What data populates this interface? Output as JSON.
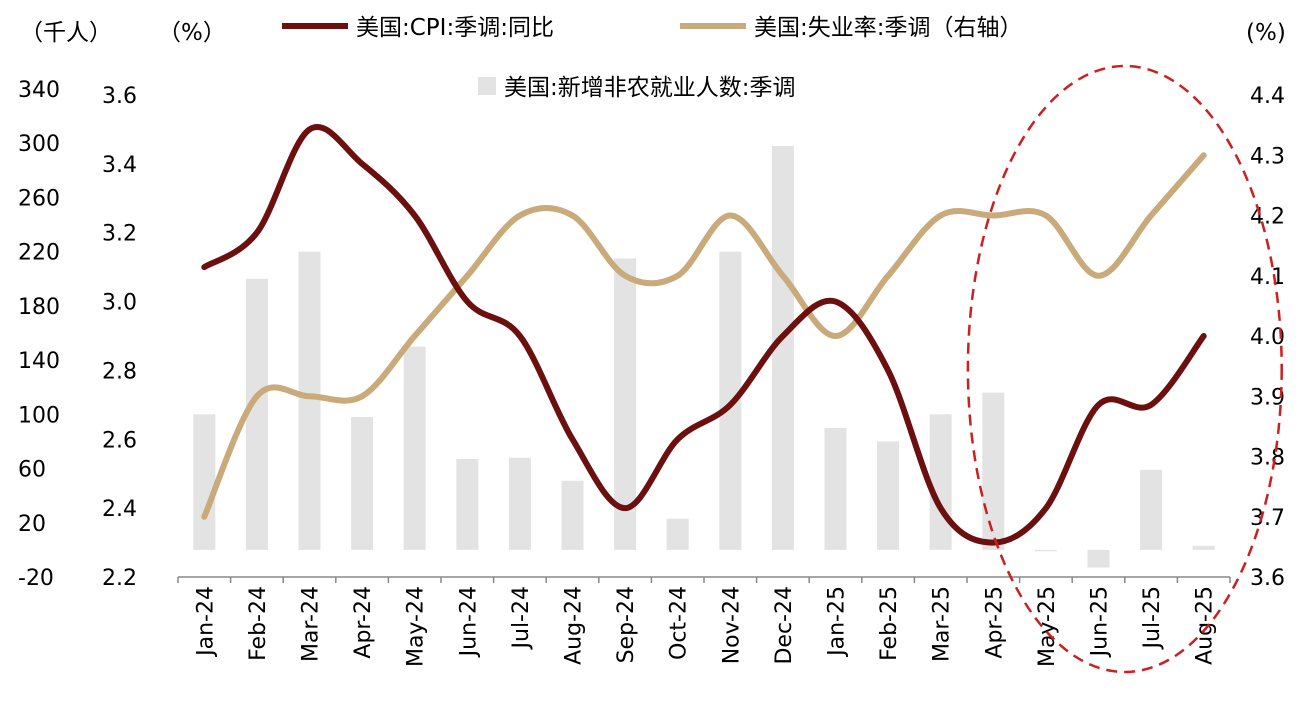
{
  "chart_data": {
    "type": "bar+line",
    "units": {
      "left_bar_axis": "（千人）",
      "left_line_axis": "（%）",
      "right_axis": "(%)"
    },
    "categories": [
      "Jan-24",
      "Feb-24",
      "Mar-24",
      "Apr-24",
      "May-24",
      "Jun-24",
      "Jul-24",
      "Aug-24",
      "Sep-24",
      "Oct-24",
      "Nov-24",
      "Dec-24",
      "Jan-25",
      "Feb-25",
      "Mar-25",
      "Apr-25",
      "May-25",
      "Jun-25",
      "Jul-25",
      "Aug-25"
    ],
    "axes": {
      "bar_left": {
        "min": -20,
        "max": 340,
        "ticks": [
          "340",
          "300",
          "260",
          "220",
          "180",
          "140",
          "100",
          "60",
          "20",
          "-20"
        ]
      },
      "cpi_left": {
        "min": 2.2,
        "max": 3.6,
        "ticks": [
          "3.6",
          "3.4",
          "3.2",
          "3.0",
          "2.8",
          "2.6",
          "2.4",
          "2.2"
        ]
      },
      "unemp_right": {
        "min": 3.6,
        "max": 4.4,
        "ticks": [
          "4.4",
          "4.3",
          "4.2",
          "4.1",
          "4.0",
          "3.9",
          "3.8",
          "3.7",
          "3.6"
        ]
      }
    },
    "series": [
      {
        "name": "美国:CPI:季调:同比",
        "kind": "line",
        "axis": "cpi_left",
        "color": "#6b0f0f",
        "values": [
          3.1,
          3.2,
          3.5,
          3.4,
          3.25,
          3.0,
          2.9,
          2.6,
          2.4,
          2.6,
          2.7,
          2.9,
          3.0,
          2.8,
          2.4,
          2.3,
          2.4,
          2.7,
          2.7,
          2.9
        ]
      },
      {
        "name": "美国:失业率:季调（右轴）",
        "kind": "line",
        "axis": "unemp_right",
        "color": "#c9aa7b",
        "values": [
          3.7,
          3.9,
          3.9,
          3.9,
          4.0,
          4.1,
          4.2,
          4.2,
          4.1,
          4.1,
          4.2,
          4.1,
          4.0,
          4.1,
          4.2,
          4.2,
          4.2,
          4.1,
          4.2,
          4.3
        ]
      },
      {
        "name": "美国:新增非农就业人数:季调",
        "kind": "bar",
        "axis": "bar_left",
        "color": "#e3e3e3",
        "values": [
          100,
          200,
          220,
          98,
          150,
          67,
          68,
          51,
          215,
          23,
          220,
          298,
          90,
          80,
          100,
          116,
          -1,
          -13,
          59,
          3
        ]
      }
    ],
    "legend": {
      "placement": "top"
    },
    "annotation": {
      "type": "dashed-ellipse",
      "color": "#cc1f1f",
      "covers": [
        "May-25",
        "Jun-25",
        "Jul-25",
        "Aug-25"
      ]
    },
    "grid": false
  }
}
